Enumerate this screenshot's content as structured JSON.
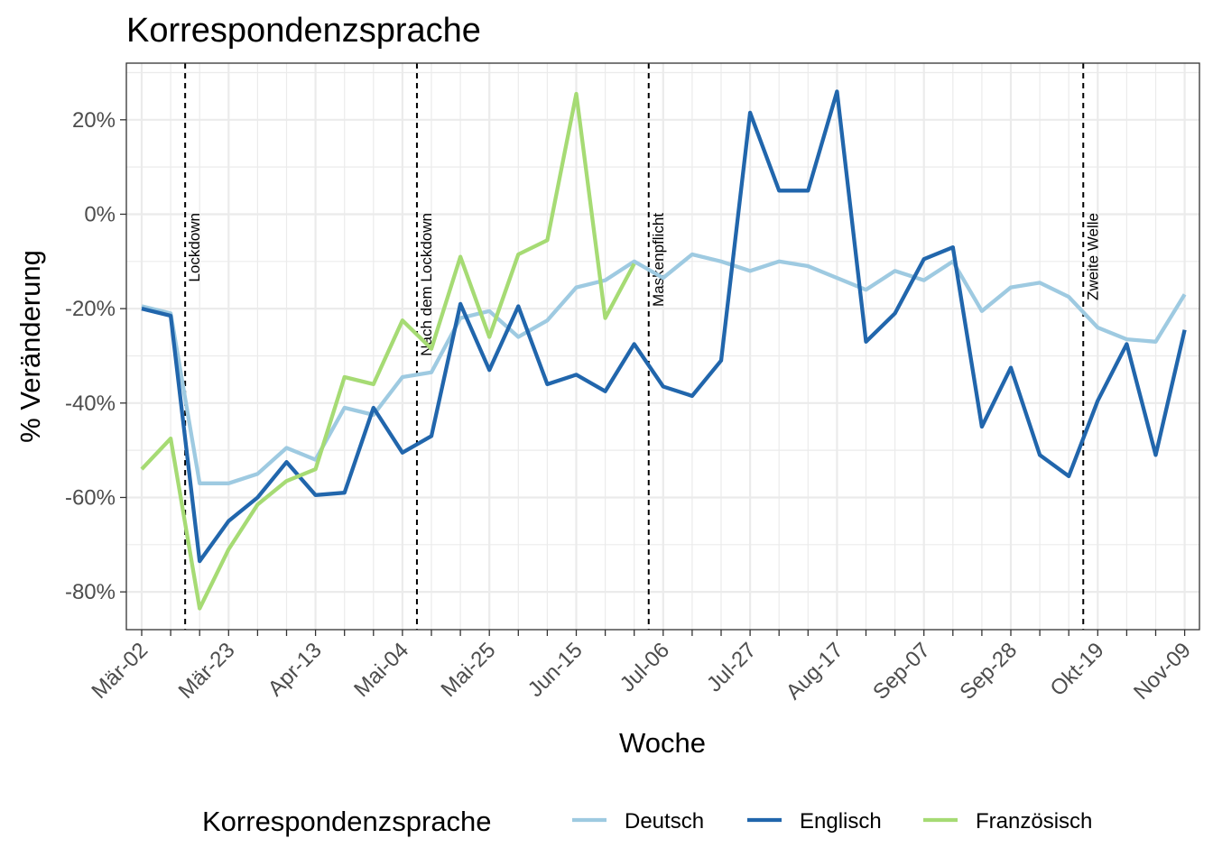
{
  "chart_data": {
    "type": "line",
    "title": "Korrespondenzsprache",
    "xlabel": "Woche",
    "ylabel": "% Veränderung",
    "ylim": [
      -88,
      32
    ],
    "y_ticks": [
      20,
      0,
      -20,
      -40,
      -60,
      -80
    ],
    "y_tick_labels": [
      "20%",
      "0%",
      "-20%",
      "-40%",
      "-60%",
      "-80%"
    ],
    "x_tick_labels": [
      "Mär-02",
      "Mär-23",
      "Apr-13",
      "Mai-04",
      "Mai-25",
      "Jun-15",
      "Jul-06",
      "Jul-27",
      "Aug-17",
      "Sep-07",
      "Sep-28",
      "Okt-19",
      "Nov-09"
    ],
    "x_tick_weeks": [
      0,
      3,
      6,
      9,
      12,
      15,
      18,
      21,
      24,
      27,
      30,
      33,
      36
    ],
    "weeks_range": [
      0,
      36
    ],
    "grid": true,
    "legend_position": "bottom",
    "legend_title": "Korrespondenzsprache",
    "events": [
      {
        "label": "Lockdown",
        "week": 1.5
      },
      {
        "label": "Nach dem Lockdown",
        "week": 9.5
      },
      {
        "label": "Maskenpflicht",
        "week": 17.5
      },
      {
        "label": "Zweite Welle",
        "week": 32.5
      }
    ],
    "series": [
      {
        "name": "Deutsch",
        "color": "#9ecae1",
        "values": [
          -19.5,
          -21,
          -57,
          -57,
          -55,
          -49.5,
          -52,
          -41,
          -42.5,
          -34.5,
          -33.5,
          -22,
          -20.5,
          -26,
          -22.5,
          -15.5,
          -14,
          -10,
          -13.5,
          -8.5,
          -10,
          -12,
          -10,
          -11,
          -13.5,
          -16,
          -12,
          -14,
          -10,
          -20.5,
          -15.5,
          -14.5,
          -17.5,
          -24,
          -26.5,
          -27,
          -17
        ]
      },
      {
        "name": "Englisch",
        "color": "#2166ac",
        "values": [
          -20,
          -21.5,
          -73.5,
          -65,
          -60,
          -52.5,
          -59.5,
          -59,
          -41,
          -50.5,
          -47,
          -19,
          -33,
          -19.5,
          -36,
          -34,
          -37.5,
          -27.5,
          -36.5,
          -38.5,
          -31,
          21.5,
          5,
          5,
          26,
          -27,
          -21,
          -9.5,
          -7,
          -45,
          -32.5,
          -51,
          -55.5,
          -39.5,
          -27.5,
          -51,
          -24.5
        ]
      },
      {
        "name": "Französisch",
        "color": "#a6db74",
        "values": [
          -54,
          -47.5,
          -83.5,
          -71,
          -61.5,
          -56.5,
          -54,
          -34.5,
          -36,
          -22.5,
          -28.5,
          -9,
          -26,
          -8.5,
          -5.5,
          25.5,
          -22,
          -10.5
        ]
      }
    ]
  }
}
